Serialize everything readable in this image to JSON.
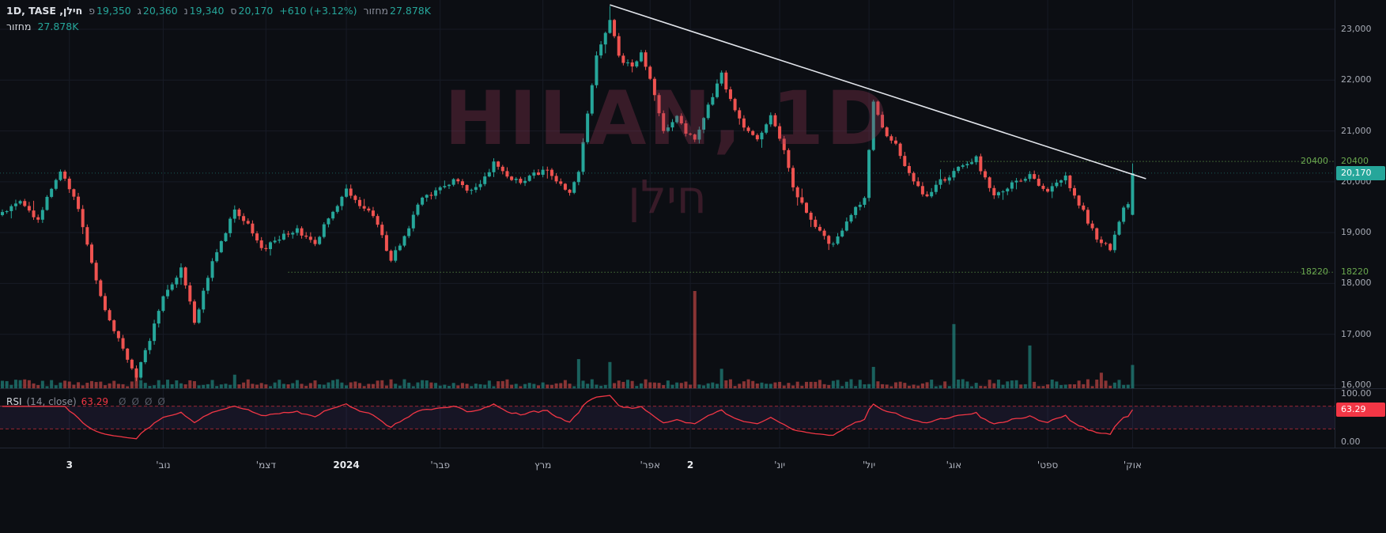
{
  "colors": {
    "background": "#0c0e13",
    "grid": "#171b26",
    "up": "#26a69a",
    "down": "#ef5350",
    "rsi_line": "#f23645",
    "level_green": "#6aa84f",
    "trendline": "#e3e6ec",
    "rsi_band_fill": "rgba(126,87,194,0.10)",
    "badge_price_bg": "#26a69a",
    "badge_rsi_bg": "#f23645",
    "watermark": "rgba(150,55,88,0.32)"
  },
  "header": {
    "title": "חילן, 1D, TASE",
    "ohlc": [
      {
        "label": "פ",
        "value": "19,350"
      },
      {
        "label": "ג",
        "value": "20,360"
      },
      {
        "label": "נ",
        "value": "19,340"
      },
      {
        "label": "ס",
        "value": "20,170"
      }
    ],
    "change": "+610 (+3.12%)",
    "volume_label": "מחזור",
    "volume_value": "27.878K"
  },
  "volume_indicator": {
    "label": "מחזור",
    "value": "27.878K"
  },
  "rsi_legend": {
    "name": "RSI",
    "params": "(14, close)",
    "value": "63.29",
    "hidden_values": [
      "Ø",
      "Ø",
      "Ø",
      "Ø"
    ]
  },
  "watermark": {
    "line1": "HILAN, 1D",
    "line2": "חילן"
  },
  "chart_data": {
    "type": "candlestick",
    "symbol": "HILAN (חילן), TASE",
    "interval": "1D",
    "bar_count": 254,
    "bar_spacing_px": 5.65,
    "ylim": [
      15950,
      23575
    ],
    "prev_close": 19560,
    "last_bar": {
      "open": 19350,
      "high": 20360,
      "low": 19340,
      "close": 20170,
      "change": "+610 (+3.12%)",
      "volume": "27.878K"
    },
    "price_gridlines": [
      {
        "label": "23,000",
        "value": 23000
      },
      {
        "label": "22,000",
        "value": 22000
      },
      {
        "label": "21,000",
        "value": 21000
      },
      {
        "label": "20,000",
        "value": 20000
      },
      {
        "label": "19,000",
        "value": 19000
      },
      {
        "label": "18,000",
        "value": 18000
      },
      {
        "label": "17,000",
        "value": 17000
      },
      {
        "label": "16,000",
        "value": 16000
      }
    ],
    "last_price_badge": {
      "label": "20,170",
      "value": 20170
    },
    "levels": [
      {
        "label": "20400",
        "price": 20400,
        "start_index": 210
      },
      {
        "label": "18220",
        "price": 18220,
        "start_index": 64
      }
    ],
    "trendline": {
      "from": {
        "index": 136,
        "price": 23480
      },
      "to": {
        "index": 256,
        "price": 20060
      }
    },
    "close_waypoints": [
      [
        0,
        19400
      ],
      [
        4,
        19600
      ],
      [
        8,
        19250
      ],
      [
        13,
        20250
      ],
      [
        17,
        19500
      ],
      [
        20,
        18400
      ],
      [
        23,
        17500
      ],
      [
        26,
        16900
      ],
      [
        30,
        16150
      ],
      [
        33,
        16900
      ],
      [
        36,
        17750
      ],
      [
        40,
        18300
      ],
      [
        43,
        17250
      ],
      [
        47,
        18400
      ],
      [
        52,
        19450
      ],
      [
        55,
        19200
      ],
      [
        58,
        18650
      ],
      [
        62,
        18900
      ],
      [
        66,
        19050
      ],
      [
        70,
        18800
      ],
      [
        73,
        19300
      ],
      [
        77,
        19850
      ],
      [
        80,
        19500
      ],
      [
        83,
        19350
      ],
      [
        87,
        18450
      ],
      [
        90,
        18900
      ],
      [
        94,
        19700
      ],
      [
        98,
        19850
      ],
      [
        101,
        20050
      ],
      [
        104,
        19800
      ],
      [
        107,
        19950
      ],
      [
        110,
        20350
      ],
      [
        113,
        20100
      ],
      [
        116,
        19980
      ],
      [
        119,
        20150
      ],
      [
        122,
        20230
      ],
      [
        125,
        19950
      ],
      [
        127,
        19820
      ],
      [
        129,
        20150
      ],
      [
        131,
        21350
      ],
      [
        133,
        22500
      ],
      [
        136,
        23200
      ],
      [
        138,
        22450
      ],
      [
        141,
        22250
      ],
      [
        143,
        22550
      ],
      [
        146,
        21700
      ],
      [
        148,
        21000
      ],
      [
        151,
        21250
      ],
      [
        153,
        20950
      ],
      [
        155,
        20850
      ],
      [
        158,
        21500
      ],
      [
        161,
        22100
      ],
      [
        164,
        21400
      ],
      [
        167,
        20950
      ],
      [
        169,
        20800
      ],
      [
        172,
        21300
      ],
      [
        175,
        20600
      ],
      [
        177,
        19900
      ],
      [
        180,
        19350
      ],
      [
        183,
        19000
      ],
      [
        186,
        18750
      ],
      [
        190,
        19350
      ],
      [
        193,
        19650
      ],
      [
        195,
        21550
      ],
      [
        197,
        21050
      ],
      [
        200,
        20700
      ],
      [
        204,
        20000
      ],
      [
        207,
        19700
      ],
      [
        210,
        20000
      ],
      [
        214,
        20250
      ],
      [
        218,
        20450
      ],
      [
        222,
        19700
      ],
      [
        226,
        19950
      ],
      [
        230,
        20100
      ],
      [
        234,
        19850
      ],
      [
        238,
        20080
      ],
      [
        242,
        19400
      ],
      [
        245,
        18850
      ],
      [
        248,
        18700
      ],
      [
        251,
        19450
      ],
      [
        252,
        19560
      ],
      [
        253,
        20170
      ]
    ],
    "volume_spikes": [
      [
        30,
        0.2
      ],
      [
        52,
        0.14
      ],
      [
        129,
        0.3
      ],
      [
        136,
        0.27
      ],
      [
        155,
        1.0
      ],
      [
        161,
        0.2
      ],
      [
        195,
        0.22
      ],
      [
        213,
        0.66
      ],
      [
        230,
        0.44
      ],
      [
        246,
        0.16
      ],
      [
        253,
        0.24
      ]
    ],
    "rsi": {
      "period": 14,
      "source": "close",
      "last": 63.29,
      "upper_band": 70,
      "lower_band": 30,
      "range": [
        0,
        100
      ],
      "axis_labels": {
        "top": "100.00",
        "bottom": "0.00",
        "badge": "63.29"
      }
    },
    "x_labels": [
      {
        "label": "3",
        "index": 15,
        "strong": true
      },
      {
        "label": "נוב'",
        "index": 36
      },
      {
        "label": "דצמ'",
        "index": 59
      },
      {
        "label": "2024",
        "index": 77,
        "strong": true
      },
      {
        "label": "פבר'",
        "index": 98
      },
      {
        "label": "מרץ",
        "index": 121
      },
      {
        "label": "אפר'",
        "index": 145
      },
      {
        "label": "2",
        "index": 154,
        "strong": true
      },
      {
        "label": "יונ'",
        "index": 174
      },
      {
        "label": "יול'",
        "index": 194
      },
      {
        "label": "אוג'",
        "index": 213
      },
      {
        "label": "ספט'",
        "index": 234
      },
      {
        "label": "אוק'",
        "index": 253
      }
    ]
  }
}
